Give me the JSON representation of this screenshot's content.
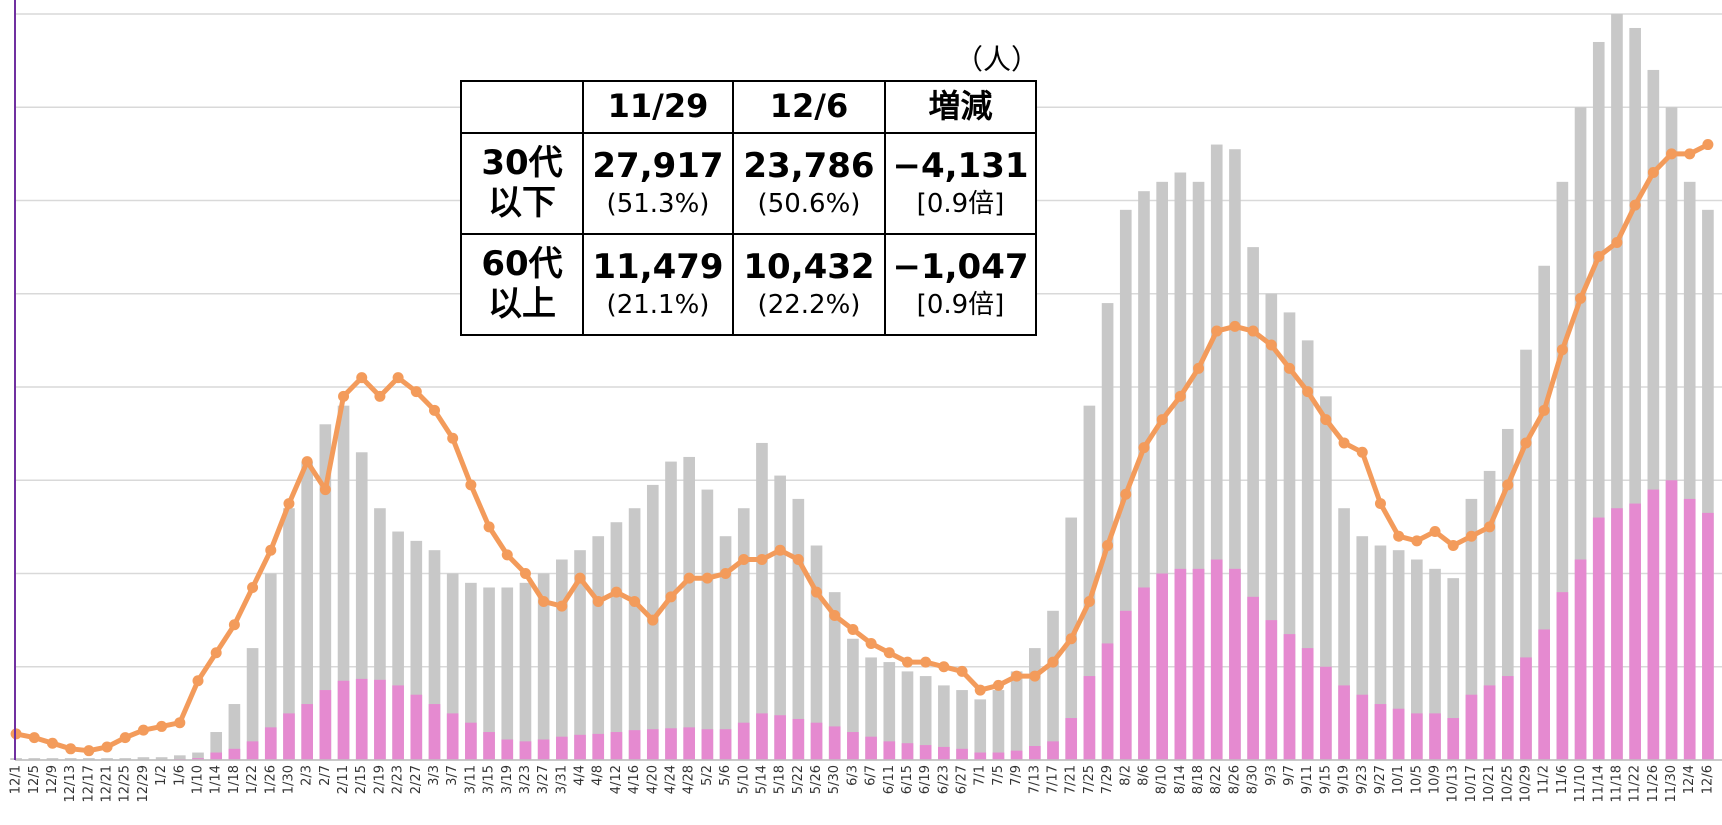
{
  "chart_data": {
    "type": "bar",
    "categories": [
      "12/1",
      "12/5",
      "12/9",
      "12/13",
      "12/17",
      "12/21",
      "12/25",
      "12/29",
      "1/2",
      "1/6",
      "1/10",
      "1/14",
      "1/18",
      "1/22",
      "1/26",
      "1/30",
      "2/3",
      "2/7",
      "2/11",
      "2/15",
      "2/19",
      "2/23",
      "2/27",
      "3/3",
      "3/7",
      "3/11",
      "3/15",
      "3/19",
      "3/23",
      "3/27",
      "3/31",
      "4/4",
      "4/8",
      "4/12",
      "4/16",
      "4/20",
      "4/24",
      "4/28",
      "5/2",
      "5/6",
      "5/10",
      "5/14",
      "5/18",
      "5/22",
      "5/26",
      "5/30",
      "6/3",
      "6/7",
      "6/11",
      "6/15",
      "6/19",
      "6/23",
      "6/27",
      "7/1",
      "7/5",
      "7/9",
      "7/13",
      "7/17",
      "7/21",
      "7/25",
      "7/29",
      "8/2",
      "8/6",
      "8/10",
      "8/14",
      "8/18",
      "8/22",
      "8/26",
      "8/30",
      "9/3",
      "9/7",
      "9/11",
      "9/15",
      "9/19",
      "9/23",
      "9/27",
      "10/1",
      "10/5",
      "10/9",
      "10/13",
      "10/17",
      "10/21",
      "10/25",
      "10/29",
      "11/2",
      "11/6",
      "11/10",
      "11/14",
      "11/18",
      "11/22",
      "11/26",
      "11/30",
      "12/4",
      "12/6"
    ],
    "series": [
      {
        "type": "bar",
        "color": "#c8c8c8",
        "values": [
          0.02,
          0.02,
          0.02,
          0.02,
          0.02,
          0.02,
          0.02,
          0.03,
          0.03,
          0.05,
          0.08,
          0.3,
          0.6,
          1.2,
          2.0,
          2.7,
          3.2,
          3.6,
          3.8,
          3.3,
          2.7,
          2.45,
          2.35,
          2.25,
          2.0,
          1.9,
          1.85,
          1.85,
          1.9,
          2.0,
          2.15,
          2.25,
          2.4,
          2.55,
          2.7,
          2.95,
          3.2,
          3.25,
          2.9,
          2.4,
          2.7,
          3.4,
          3.05,
          2.8,
          2.3,
          1.8,
          1.3,
          1.1,
          1.05,
          0.95,
          0.9,
          0.8,
          0.75,
          0.65,
          0.75,
          0.95,
          1.2,
          1.6,
          2.6,
          3.8,
          4.9,
          5.9,
          6.1,
          6.2,
          6.3,
          6.2,
          6.6,
          6.55,
          5.5,
          5.0,
          4.8,
          4.5,
          3.9,
          2.7,
          2.4,
          2.3,
          2.25,
          2.15,
          2.05,
          1.95,
          2.8,
          3.1,
          3.55,
          4.4,
          5.3,
          6.2,
          7.0,
          7.7,
          8.0,
          7.85,
          7.4,
          7.0,
          6.2,
          5.9
        ]
      },
      {
        "type": "bar",
        "color": "#e58ad0",
        "values": [
          0,
          0,
          0,
          0,
          0,
          0,
          0,
          0,
          0,
          0.01,
          0.02,
          0.08,
          0.12,
          0.2,
          0.35,
          0.5,
          0.6,
          0.75,
          0.85,
          0.87,
          0.86,
          0.8,
          0.7,
          0.6,
          0.5,
          0.4,
          0.3,
          0.22,
          0.2,
          0.22,
          0.25,
          0.27,
          0.28,
          0.3,
          0.32,
          0.33,
          0.34,
          0.35,
          0.33,
          0.33,
          0.4,
          0.5,
          0.48,
          0.44,
          0.4,
          0.36,
          0.3,
          0.25,
          0.2,
          0.18,
          0.16,
          0.14,
          0.12,
          0.08,
          0.08,
          0.1,
          0.15,
          0.2,
          0.45,
          0.9,
          1.25,
          1.6,
          1.85,
          2.0,
          2.05,
          2.05,
          2.15,
          2.05,
          1.75,
          1.5,
          1.35,
          1.2,
          1.0,
          0.8,
          0.7,
          0.6,
          0.55,
          0.5,
          0.5,
          0.45,
          0.7,
          0.8,
          0.9,
          1.1,
          1.4,
          1.8,
          2.15,
          2.6,
          2.7,
          2.75,
          2.9,
          3.0,
          2.8,
          2.65
        ]
      },
      {
        "type": "line",
        "color": "#f39b5b",
        "values": [
          0.28,
          0.24,
          0.18,
          0.12,
          0.1,
          0.14,
          0.24,
          0.32,
          0.36,
          0.4,
          0.85,
          1.15,
          1.45,
          1.85,
          2.25,
          2.75,
          3.2,
          2.9,
          3.9,
          4.1,
          3.9,
          4.1,
          3.95,
          3.75,
          3.45,
          2.95,
          2.5,
          2.2,
          2.0,
          1.7,
          1.65,
          1.95,
          1.7,
          1.8,
          1.7,
          1.5,
          1.75,
          1.95,
          1.95,
          2.0,
          2.15,
          2.15,
          2.25,
          2.15,
          1.8,
          1.55,
          1.4,
          1.25,
          1.15,
          1.05,
          1.05,
          1.0,
          0.95,
          0.75,
          0.8,
          0.9,
          0.9,
          1.05,
          1.3,
          1.7,
          2.3,
          2.85,
          3.35,
          3.65,
          3.9,
          4.2,
          4.6,
          4.65,
          4.6,
          4.45,
          4.2,
          3.95,
          3.65,
          3.4,
          3.3,
          2.75,
          2.4,
          2.35,
          2.45,
          2.3,
          2.4,
          2.5,
          2.95,
          3.4,
          3.75,
          4.4,
          4.95,
          5.4,
          5.55,
          5.95,
          6.3,
          6.5,
          6.5,
          6.6
        ]
      }
    ],
    "ylim": [
      0,
      8
    ],
    "yticks": [
      0,
      1,
      2,
      3,
      4,
      5,
      6,
      7,
      8
    ],
    "grid": true
  },
  "table": {
    "unit": "（人）",
    "header": [
      "11/29",
      "12/6",
      "増減"
    ],
    "rows": [
      {
        "label": [
          "30代",
          "以下"
        ],
        "cells": [
          [
            "27,917",
            "(51.3%)"
          ],
          [
            "23,786",
            "(50.6%)"
          ],
          [
            "−4,131",
            "[0.9倍]"
          ]
        ]
      },
      {
        "label": [
          "60代",
          "以上"
        ],
        "cells": [
          [
            "11,479",
            "(21.1%)"
          ],
          [
            "10,432",
            "(22.2%)"
          ],
          [
            "−1,047",
            "[0.9倍]"
          ]
        ]
      }
    ]
  }
}
